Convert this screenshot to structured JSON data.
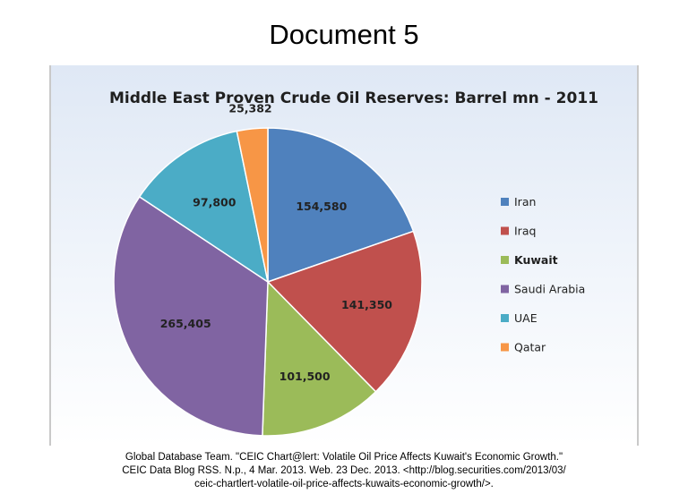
{
  "document": {
    "title": "Document 5"
  },
  "citation": {
    "lines": [
      "Global Database Team. \"CEIC Chart@lert: Volatile Oil Price Affects Kuwait's Economic Growth.\"",
      "CEIC Data Blog RSS. N.p., 4 Mar. 2013. Web. 23 Dec. 2013. <http://blog.securities.com/2013/03/",
      "ceic-chartlert-volatile-oil-price-affects-kuwaits-economic-growth/>."
    ]
  },
  "chart_data": {
    "type": "pie",
    "title": "Middle East Proven Crude Oil Reserves: Barrel mn - 2011",
    "legend_position": "right",
    "start": "12 o'clock, clockwise",
    "slices": [
      {
        "name": "Iran",
        "value": 154580,
        "label": "154,580",
        "color": "#4f81bd"
      },
      {
        "name": "Iraq",
        "value": 141350,
        "label": "141,350",
        "color": "#c0504d"
      },
      {
        "name": "Kuwait",
        "value": 101500,
        "label": "101,500",
        "color": "#9bbb59"
      },
      {
        "name": "Saudi Arabia",
        "value": 265405,
        "label": "265,405",
        "color": "#8064a2"
      },
      {
        "name": "UAE",
        "value": 97800,
        "label": "97,800",
        "color": "#4bacc6"
      },
      {
        "name": "Qatar",
        "value": 25382,
        "label": "25,382",
        "color": "#f79646"
      }
    ]
  }
}
